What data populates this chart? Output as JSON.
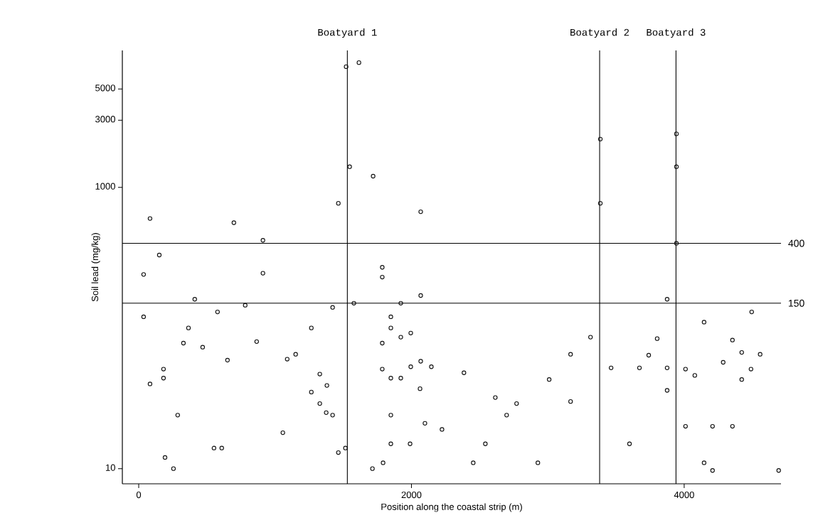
{
  "chart_data": {
    "type": "scatter",
    "xlabel": "Position along the coastal strip (m)",
    "ylabel": "Soil lead (mg/kg)",
    "log": "y",
    "marker": "circle",
    "xlim": [
      -120,
      4710
    ],
    "ylim": [
      7.8,
      9400
    ],
    "xticks": [
      0,
      2000,
      4000
    ],
    "yticks": [
      10,
      1000,
      3000,
      5000
    ],
    "series": [
      {
        "color": "#111111",
        "x": [
          1521,
          1615,
          1547,
          1719,
          1464,
          83,
          698,
          911,
          151,
          36,
          911,
          1786,
          1786,
          411,
          781,
          1578,
          1422,
          36,
          578,
          365,
          1266,
          328,
          1786,
          469,
          865,
          651,
          1089,
          1151,
          182,
          182,
          83,
          1328,
          1380,
          1266,
          1786,
          1328,
          286,
          1375,
          1422,
          1057,
          193,
          552,
          609,
          1516,
          1464,
          255,
          1714,
          1792,
          2068,
          2068,
          1922,
          1849,
          1849,
          1922,
          1995,
          2068,
          1995,
          2146,
          1849,
          1922,
          2063,
          2385,
          1849,
          2099,
          2224,
          1849,
          1990,
          2542,
          2453,
          2927,
          2615,
          2771,
          2698,
          3010,
          3167,
          3167,
          3313,
          3385,
          3385,
          3943,
          3943,
          3943,
          3875,
          4495,
          4146,
          3802,
          4354,
          3740,
          4422,
          4557,
          4286,
          3464,
          3672,
          3875,
          4010,
          4078,
          4490,
          4422,
          3875,
          4010,
          4208,
          4354,
          3599,
          4146,
          4208,
          4693
        ],
        "values": [
          7200,
          7700,
          1400,
          1200,
          770,
          600,
          560,
          420,
          330,
          240,
          245,
          270,
          230,
          160,
          145,
          150,
          140,
          120,
          130,
          100,
          100,
          78,
          78,
          73,
          80,
          59,
          60,
          65,
          51,
          44,
          40,
          47,
          39,
          35,
          51,
          29,
          24,
          25,
          24,
          18,
          12,
          14,
          14,
          14,
          13,
          10,
          10,
          11,
          670,
          170,
          150,
          120,
          100,
          86,
          92,
          58,
          53,
          53,
          44,
          44,
          37,
          48,
          24,
          21,
          19,
          15,
          15,
          15,
          11,
          11,
          32,
          29,
          24,
          43,
          65,
          30,
          86,
          2200,
          770,
          2400,
          1400,
          400,
          160,
          130,
          110,
          84,
          82,
          64,
          67,
          65,
          57,
          52,
          52,
          52,
          51,
          46,
          51,
          43,
          36,
          20,
          20,
          20,
          15,
          11,
          9.7,
          9.7
        ]
      }
    ],
    "ref_lines": [
      {
        "axis": "y",
        "value": 400,
        "label": "400"
      },
      {
        "axis": "y",
        "value": 150,
        "label": "150"
      },
      {
        "axis": "x",
        "value": 1530,
        "label": "Boatyard 1"
      },
      {
        "axis": "x",
        "value": 3380,
        "label": "Boatyard 2"
      },
      {
        "axis": "x",
        "value": 3940,
        "label": "Boatyard 3"
      }
    ]
  }
}
